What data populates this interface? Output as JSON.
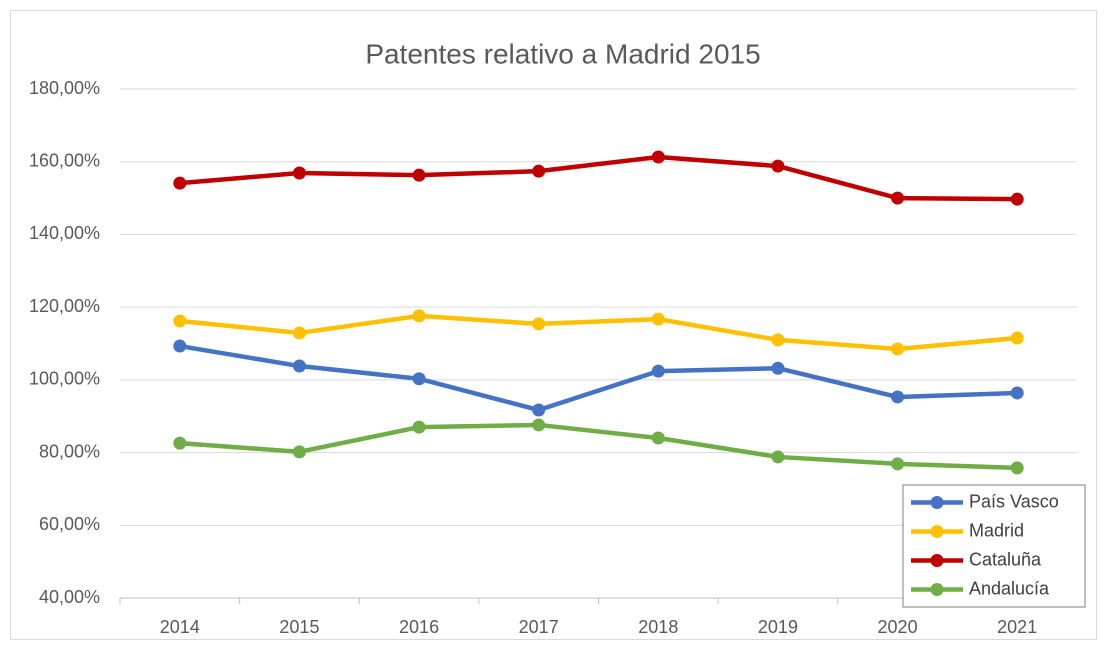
{
  "chart_data": {
    "type": "line",
    "title": "Patentes relativo a Madrid 2015",
    "categories": [
      "2014",
      "2015",
      "2016",
      "2017",
      "2018",
      "2019",
      "2020",
      "2021"
    ],
    "series": [
      {
        "name": "País Vasco",
        "color": "#4472c4",
        "values": [
          109.3,
          103.8,
          100.3,
          91.7,
          102.4,
          103.2,
          95.3,
          96.4
        ]
      },
      {
        "name": "Madrid",
        "color": "#ffc000",
        "values": [
          116.2,
          112.9,
          117.6,
          115.4,
          116.7,
          111.0,
          108.5,
          111.5
        ]
      },
      {
        "name": "Cataluña",
        "color": "#c00000",
        "values": [
          154.1,
          156.9,
          156.3,
          157.4,
          161.3,
          158.8,
          150.0,
          149.7
        ]
      },
      {
        "name": "Andalucía",
        "color": "#70ad47",
        "values": [
          82.6,
          80.2,
          87.0,
          87.6,
          84.0,
          78.8,
          76.9,
          75.8
        ]
      }
    ],
    "ylim": [
      40,
      180
    ],
    "yticks": [
      {
        "value": 40,
        "label": "40,00%"
      },
      {
        "value": 60,
        "label": "60,00%"
      },
      {
        "value": 80,
        "label": "80,00%"
      },
      {
        "value": 100,
        "label": "100,00%"
      },
      {
        "value": 120,
        "label": "120,00%"
      },
      {
        "value": 140,
        "label": "140,00%"
      },
      {
        "value": 160,
        "label": "160,00%"
      },
      {
        "value": 180,
        "label": "180,00%"
      }
    ],
    "grid": true,
    "legend": "lower right"
  }
}
